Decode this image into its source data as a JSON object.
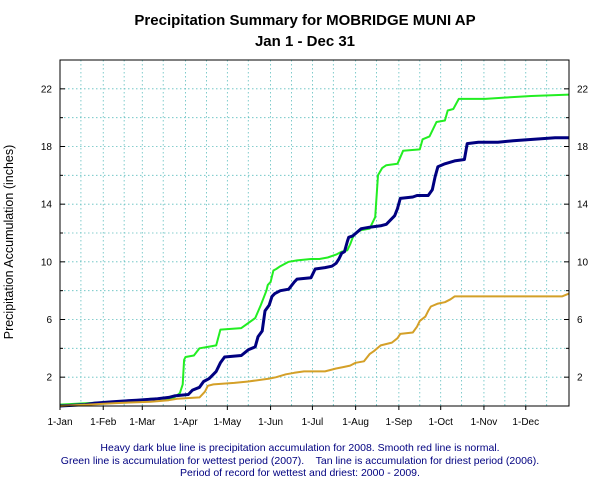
{
  "chart_data": {
    "type": "line",
    "title": "Precipitation Summary for MOBRIDGE MUNI AP",
    "subtitle": "Jan 1 - Dec 31",
    "ylabel": "Precipitation Accumulation (inches)",
    "xlabel": "",
    "x_domain_days": [
      0,
      365
    ],
    "ylim": [
      0,
      24
    ],
    "yticks": [
      2,
      6,
      10,
      14,
      18,
      22
    ],
    "xticks": [
      {
        "label": "1-Jan",
        "day": 0
      },
      {
        "label": "1-Feb",
        "day": 31
      },
      {
        "label": "1-Mar",
        "day": 59
      },
      {
        "label": "1-Apr",
        "day": 90
      },
      {
        "label": "1-May",
        "day": 120
      },
      {
        "label": "1-Jun",
        "day": 151
      },
      {
        "label": "1-Jul",
        "day": 181
      },
      {
        "label": "1-Aug",
        "day": 212
      },
      {
        "label": "1-Sep",
        "day": 243
      },
      {
        "label": "1-Oct",
        "day": 273
      },
      {
        "label": "1-Nov",
        "day": 304
      },
      {
        "label": "1-Dec",
        "day": 334
      }
    ],
    "grid": true,
    "legend": "none",
    "caption": [
      "Heavy dark blue line is precipitation accumulation for 2008. Smooth red line is normal.",
      "Green line is accumulation for wettest period (2007).    Tan line is accumulation for driest period (2006).",
      "Period of record for wettest and driest: 2000 - 2009."
    ],
    "series": [
      {
        "color": "#22ee22",
        "width": 2,
        "points": [
          [
            0,
            0.1
          ],
          [
            20,
            0.2
          ],
          [
            40,
            0.3
          ],
          [
            58,
            0.4
          ],
          [
            65,
            0.5
          ],
          [
            78,
            0.5
          ],
          [
            82,
            0.6
          ],
          [
            86,
            0.9
          ],
          [
            88,
            1.5
          ],
          [
            89,
            3.2
          ],
          [
            90,
            3.4
          ],
          [
            96,
            3.5
          ],
          [
            100,
            4.0
          ],
          [
            106,
            4.1
          ],
          [
            112,
            4.2
          ],
          [
            115,
            5.3
          ],
          [
            130,
            5.4
          ],
          [
            140,
            6.1
          ],
          [
            144,
            7.0
          ],
          [
            148,
            8.0
          ],
          [
            149,
            8.4
          ],
          [
            151,
            8.6
          ],
          [
            153,
            9.4
          ],
          [
            155,
            9.5
          ],
          [
            158,
            9.7
          ],
          [
            164,
            10.0
          ],
          [
            170,
            10.1
          ],
          [
            180,
            10.2
          ],
          [
            186,
            10.2
          ],
          [
            192,
            10.3
          ],
          [
            198,
            10.5
          ],
          [
            202,
            10.7
          ],
          [
            206,
            10.8
          ],
          [
            208,
            11.2
          ],
          [
            210,
            11.7
          ],
          [
            212,
            12.0
          ],
          [
            216,
            12.2
          ],
          [
            222,
            12.3
          ],
          [
            226,
            13.1
          ],
          [
            228,
            16.0
          ],
          [
            231,
            16.5
          ],
          [
            234,
            16.7
          ],
          [
            242,
            16.8
          ],
          [
            246,
            17.7
          ],
          [
            258,
            17.8
          ],
          [
            260,
            18.5
          ],
          [
            265,
            18.7
          ],
          [
            270,
            19.7
          ],
          [
            276,
            19.8
          ],
          [
            278,
            20.5
          ],
          [
            282,
            20.6
          ],
          [
            286,
            21.3
          ],
          [
            294,
            21.3
          ],
          [
            305,
            21.3
          ],
          [
            320,
            21.4
          ],
          [
            338,
            21.5
          ],
          [
            365,
            21.6
          ]
        ]
      },
      {
        "color": "#000080",
        "width": 3,
        "points": [
          [
            0,
            0.0
          ],
          [
            18,
            0.1
          ],
          [
            25,
            0.2
          ],
          [
            38,
            0.3
          ],
          [
            55,
            0.4
          ],
          [
            70,
            0.5
          ],
          [
            78,
            0.6
          ],
          [
            82,
            0.7
          ],
          [
            92,
            0.8
          ],
          [
            95,
            1.1
          ],
          [
            100,
            1.3
          ],
          [
            103,
            1.7
          ],
          [
            107,
            1.9
          ],
          [
            112,
            2.4
          ],
          [
            115,
            3.0
          ],
          [
            118,
            3.4
          ],
          [
            130,
            3.5
          ],
          [
            135,
            3.9
          ],
          [
            140,
            4.1
          ],
          [
            142,
            4.8
          ],
          [
            145,
            5.2
          ],
          [
            147,
            6.6
          ],
          [
            150,
            7.0
          ],
          [
            152,
            7.6
          ],
          [
            154,
            7.8
          ],
          [
            158,
            8.0
          ],
          [
            164,
            8.1
          ],
          [
            168,
            8.6
          ],
          [
            170,
            8.8
          ],
          [
            180,
            8.9
          ],
          [
            183,
            9.5
          ],
          [
            190,
            9.6
          ],
          [
            195,
            9.7
          ],
          [
            198,
            9.9
          ],
          [
            200,
            10.2
          ],
          [
            202,
            10.6
          ],
          [
            204,
            10.7
          ],
          [
            206,
            11.4
          ],
          [
            207,
            11.7
          ],
          [
            210,
            11.8
          ],
          [
            216,
            12.3
          ],
          [
            222,
            12.4
          ],
          [
            230,
            12.5
          ],
          [
            234,
            12.6
          ],
          [
            238,
            13.0
          ],
          [
            240,
            13.2
          ],
          [
            242,
            13.7
          ],
          [
            244,
            14.4
          ],
          [
            253,
            14.5
          ],
          [
            256,
            14.6
          ],
          [
            264,
            14.6
          ],
          [
            267,
            15.0
          ],
          [
            269,
            15.9
          ],
          [
            271,
            16.6
          ],
          [
            276,
            16.8
          ],
          [
            283,
            17.0
          ],
          [
            290,
            17.1
          ],
          [
            292,
            18.2
          ],
          [
            300,
            18.3
          ],
          [
            314,
            18.3
          ],
          [
            325,
            18.4
          ],
          [
            340,
            18.5
          ],
          [
            355,
            18.6
          ],
          [
            365,
            18.6
          ]
        ]
      },
      {
        "color": "#d4a028",
        "width": 2,
        "points": [
          [
            0,
            0.0
          ],
          [
            20,
            0.1
          ],
          [
            40,
            0.2
          ],
          [
            65,
            0.3
          ],
          [
            78,
            0.4
          ],
          [
            84,
            0.5
          ],
          [
            100,
            0.6
          ],
          [
            104,
            1.0
          ],
          [
            106,
            1.4
          ],
          [
            110,
            1.5
          ],
          [
            125,
            1.6
          ],
          [
            135,
            1.7
          ],
          [
            150,
            1.9
          ],
          [
            155,
            2.0
          ],
          [
            162,
            2.2
          ],
          [
            168,
            2.3
          ],
          [
            175,
            2.4
          ],
          [
            190,
            2.4
          ],
          [
            198,
            2.6
          ],
          [
            203,
            2.7
          ],
          [
            208,
            2.8
          ],
          [
            212,
            3.0
          ],
          [
            218,
            3.1
          ],
          [
            222,
            3.6
          ],
          [
            225,
            3.8
          ],
          [
            230,
            4.2
          ],
          [
            238,
            4.4
          ],
          [
            242,
            4.7
          ],
          [
            244,
            5.0
          ],
          [
            253,
            5.1
          ],
          [
            256,
            5.5
          ],
          [
            258,
            5.9
          ],
          [
            262,
            6.2
          ],
          [
            264,
            6.6
          ],
          [
            266,
            6.9
          ],
          [
            271,
            7.1
          ],
          [
            276,
            7.2
          ],
          [
            280,
            7.4
          ],
          [
            283,
            7.6
          ],
          [
            294,
            7.6
          ],
          [
            310,
            7.6
          ],
          [
            330,
            7.6
          ],
          [
            350,
            7.6
          ],
          [
            360,
            7.6
          ],
          [
            365,
            7.8
          ]
        ]
      }
    ]
  }
}
